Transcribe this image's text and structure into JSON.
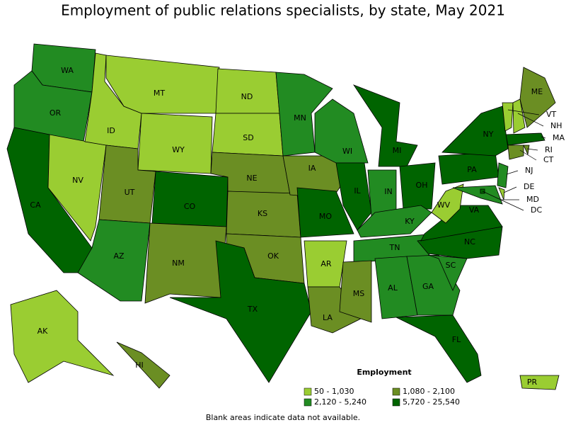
{
  "title": "Employment of public relations specialists, by state, May 2021",
  "legend": {
    "title": "Employment",
    "items": [
      {
        "label": "50 - 1,030",
        "color": "#9acd32"
      },
      {
        "label": "1,080 - 2,100",
        "color": "#6b8e23"
      },
      {
        "label": "2,120 - 5,240",
        "color": "#228b22"
      },
      {
        "label": "5,720 - 25,540",
        "color": "#006400"
      }
    ]
  },
  "states": [
    {
      "label": "WA",
      "color": "#228b22"
    },
    {
      "label": "OR",
      "color": "#228b22"
    },
    {
      "label": "CA",
      "color": "#006400"
    },
    {
      "label": "NV",
      "color": "#9acd32"
    },
    {
      "label": "ID",
      "color": "#9acd32"
    },
    {
      "label": "MT",
      "color": "#9acd32"
    },
    {
      "label": "WY",
      "color": "#9acd32"
    },
    {
      "label": "UT",
      "color": "#6b8e23"
    },
    {
      "label": "AZ",
      "color": "#228b22"
    },
    {
      "label": "CO",
      "color": "#006400"
    },
    {
      "label": "NM",
      "color": "#6b8e23"
    },
    {
      "label": "ND",
      "color": "#9acd32"
    },
    {
      "label": "SD",
      "color": "#9acd32"
    },
    {
      "label": "NE",
      "color": "#6b8e23"
    },
    {
      "label": "KS",
      "color": "#6b8e23"
    },
    {
      "label": "OK",
      "color": "#6b8e23"
    },
    {
      "label": "TX",
      "color": "#006400"
    },
    {
      "label": "MN",
      "color": "#228b22"
    },
    {
      "label": "IA",
      "color": "#6b8e23"
    },
    {
      "label": "MO",
      "color": "#006400"
    },
    {
      "label": "AR",
      "color": "#9acd32"
    },
    {
      "label": "LA",
      "color": "#6b8e23"
    },
    {
      "label": "WI",
      "color": "#228b22"
    },
    {
      "label": "IL",
      "color": "#006400"
    },
    {
      "label": "MI",
      "color": "#006400"
    },
    {
      "label": "IN",
      "color": "#228b22"
    },
    {
      "label": "OH",
      "color": "#006400"
    },
    {
      "label": "KY",
      "color": "#228b22"
    },
    {
      "label": "TN",
      "color": "#228b22"
    },
    {
      "label": "MS",
      "color": "#6b8e23"
    },
    {
      "label": "AL",
      "color": "#228b22"
    },
    {
      "label": "GA",
      "color": "#228b22"
    },
    {
      "label": "FL",
      "color": "#006400"
    },
    {
      "label": "SC",
      "color": "#228b22"
    },
    {
      "label": "NC",
      "color": "#006400"
    },
    {
      "label": "VA",
      "color": "#006400"
    },
    {
      "label": "WV",
      "color": "#9acd32"
    },
    {
      "label": "PA",
      "color": "#006400"
    },
    {
      "label": "NY",
      "color": "#006400"
    },
    {
      "label": "NJ",
      "color": "#228b22"
    },
    {
      "label": "DE",
      "color": "#9acd32"
    },
    {
      "label": "MD",
      "color": "#228b22"
    },
    {
      "label": "DC",
      "color": "#006400"
    },
    {
      "label": "VT",
      "color": "#9acd32"
    },
    {
      "label": "NH",
      "color": "#9acd32"
    },
    {
      "label": "MA",
      "color": "#006400"
    },
    {
      "label": "CT",
      "color": "#6b8e23"
    },
    {
      "label": "RI",
      "color": "#6b8e23"
    },
    {
      "label": "ME",
      "color": "#6b8e23"
    },
    {
      "label": "AK",
      "color": "#9acd32"
    },
    {
      "label": "HI",
      "color": "#6b8e23"
    },
    {
      "label": "PR",
      "color": "#9acd32"
    }
  ],
  "footnote": "Blank areas indicate data not available."
}
